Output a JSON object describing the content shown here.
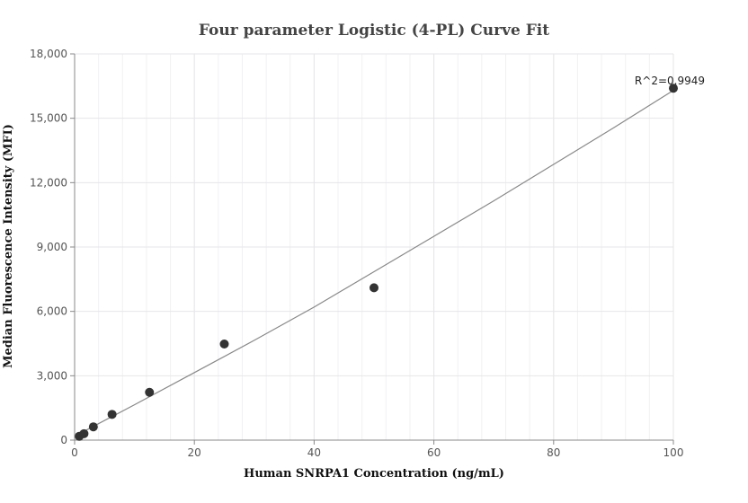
{
  "chart_data": {
    "type": "scatter",
    "title": "Four parameter Logistic (4-PL) Curve Fit",
    "xlabel": "Human SNRPA1 Concentration (ng/mL)",
    "ylabel": "Median Fluorescence Intensity (MFI)",
    "xlim": [
      0,
      100
    ],
    "ylim": [
      0,
      18000
    ],
    "xticks": [
      0,
      20,
      40,
      60,
      80,
      100
    ],
    "yticks": [
      0,
      3000,
      6000,
      9000,
      12000,
      15000,
      18000
    ],
    "xtick_labels": [
      "0",
      "20",
      "40",
      "60",
      "80",
      "100"
    ],
    "ytick_labels": [
      "0",
      "3,000",
      "6,000",
      "9,000",
      "12,000",
      "15,000",
      "18,000"
    ],
    "grid": true,
    "points": {
      "x": [
        0.78,
        1.56,
        3.13,
        6.25,
        12.5,
        25,
        50,
        100
      ],
      "y": [
        180,
        300,
        620,
        1200,
        2230,
        4480,
        7100,
        16400
      ]
    },
    "fit_curve": {
      "x": [
        0,
        10,
        20,
        30,
        40,
        50,
        60,
        70,
        80,
        90,
        100
      ],
      "y": [
        180,
        1650,
        3150,
        4650,
        6200,
        7850,
        9500,
        11150,
        12850,
        14550,
        16300
      ]
    },
    "annotation": "R^2=0.9949",
    "colors": {
      "points": "#333333",
      "fit_line": "#888888",
      "grid": "#e6e6ea",
      "axis": "#888888"
    }
  }
}
